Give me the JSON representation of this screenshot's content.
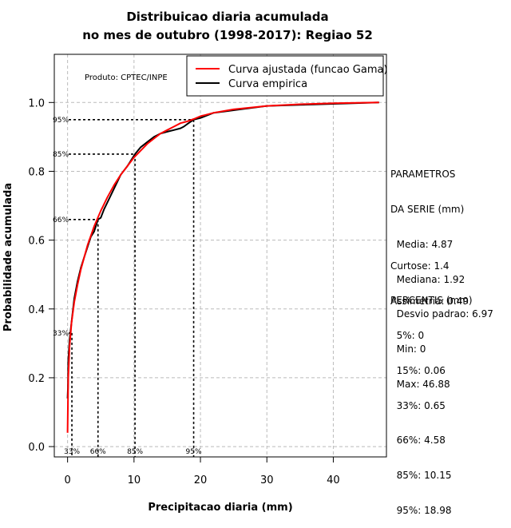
{
  "chart_data": {
    "type": "line",
    "title_line1": "Distribuicao diaria acumulada",
    "title_line2": "no mes de outubro (1998-2017): Regiao 52",
    "xlabel": "Precipitacao diaria (mm)",
    "ylabel": "Probabilidade acumulada",
    "xlim": [
      -2,
      48
    ],
    "ylim": [
      -0.03,
      1.14
    ],
    "x_ticks": [
      0,
      10,
      20,
      30,
      40
    ],
    "y_ticks": [
      0.0,
      0.2,
      0.4,
      0.6,
      0.8,
      1.0
    ],
    "x_tick_labels": [
      "0",
      "10",
      "20",
      "30",
      "40"
    ],
    "y_tick_labels": [
      "0.0",
      "0.2",
      "0.4",
      "0.6",
      "0.8",
      "1.0"
    ],
    "grid": true,
    "product_label": "Produto: CPTEC/INPE",
    "legend": {
      "position": "top-right",
      "entries": [
        {
          "label": "Curva ajustada (funcao Gama)",
          "color": "#ff0000"
        },
        {
          "label": "Curva empirica",
          "color": "#000000"
        }
      ]
    },
    "series": [
      {
        "name": "Curva ajustada (funcao Gama)",
        "color": "#ff0000",
        "points": [
          [
            0,
            0.04
          ],
          [
            0.1,
            0.2
          ],
          [
            0.3,
            0.29
          ],
          [
            0.6,
            0.36
          ],
          [
            1,
            0.42
          ],
          [
            1.5,
            0.47
          ],
          [
            2,
            0.515
          ],
          [
            3,
            0.585
          ],
          [
            4,
            0.64
          ],
          [
            5,
            0.685
          ],
          [
            6,
            0.725
          ],
          [
            7,
            0.76
          ],
          [
            8,
            0.79
          ],
          [
            9,
            0.815
          ],
          [
            10,
            0.84
          ],
          [
            11,
            0.86
          ],
          [
            12,
            0.88
          ],
          [
            13,
            0.895
          ],
          [
            14,
            0.91
          ],
          [
            15,
            0.92
          ],
          [
            16,
            0.93
          ],
          [
            17,
            0.94
          ],
          [
            18,
            0.945
          ],
          [
            19,
            0.952
          ],
          [
            20,
            0.96
          ],
          [
            22,
            0.97
          ],
          [
            25,
            0.98
          ],
          [
            30,
            0.99
          ],
          [
            35,
            0.995
          ],
          [
            40,
            0.998
          ],
          [
            46.88,
            1.0
          ]
        ]
      },
      {
        "name": "Curva empirica",
        "color": "#000000",
        "points": [
          [
            0,
            0.14
          ],
          [
            0.06,
            0.17
          ],
          [
            0.1,
            0.25
          ],
          [
            0.3,
            0.31
          ],
          [
            0.65,
            0.37
          ],
          [
            1,
            0.43
          ],
          [
            1.5,
            0.48
          ],
          [
            2,
            0.52
          ],
          [
            2.5,
            0.55
          ],
          [
            3,
            0.58
          ],
          [
            3.5,
            0.61
          ],
          [
            4,
            0.625
          ],
          [
            4.58,
            0.66
          ],
          [
            5,
            0.665
          ],
          [
            5.5,
            0.69
          ],
          [
            6,
            0.71
          ],
          [
            7,
            0.75
          ],
          [
            8,
            0.79
          ],
          [
            9,
            0.815
          ],
          [
            10.15,
            0.85
          ],
          [
            11,
            0.87
          ],
          [
            12,
            0.885
          ],
          [
            13,
            0.9
          ],
          [
            14,
            0.91
          ],
          [
            15,
            0.915
          ],
          [
            16,
            0.92
          ],
          [
            17,
            0.925
          ],
          [
            17.5,
            0.93
          ],
          [
            18.2,
            0.94
          ],
          [
            18.98,
            0.95
          ],
          [
            20,
            0.955
          ],
          [
            22,
            0.97
          ],
          [
            24,
            0.975
          ],
          [
            26,
            0.98
          ],
          [
            28,
            0.985
          ],
          [
            30,
            0.99
          ],
          [
            35,
            0.993
          ],
          [
            40,
            0.996
          ],
          [
            46.88,
            1.0
          ]
        ]
      }
    ],
    "percentile_marks": [
      {
        "label": "33%",
        "x": 0.65,
        "y": 0.33
      },
      {
        "label": "66%",
        "x": 4.58,
        "y": 0.66
      },
      {
        "label": "85%",
        "x": 10.15,
        "y": 0.85
      },
      {
        "label": "95%",
        "x": 18.98,
        "y": 0.95
      }
    ]
  },
  "stats_panel": {
    "heading1": "PARAMETROS",
    "heading2": "DA SERIE (mm)",
    "media": "  Media: 4.87",
    "mediana": "  Mediana: 1.92",
    "desvio": "  Desvio padrao: 6.97",
    "min": "  Min: 0",
    "max": "  Max: 46.88",
    "curtose": "Curtose: 1.4",
    "assimetria": "Assimetria: 0.49",
    "percentis_heading": "PERCENTIS (mm)",
    "p5": "  5%: 0",
    "p15": "  15%: 0.06",
    "p33": "  33%: 0.65",
    "p66": "  66%: 4.58",
    "p85": "  85%: 10.15",
    "p95": "  95%: 18.98"
  }
}
